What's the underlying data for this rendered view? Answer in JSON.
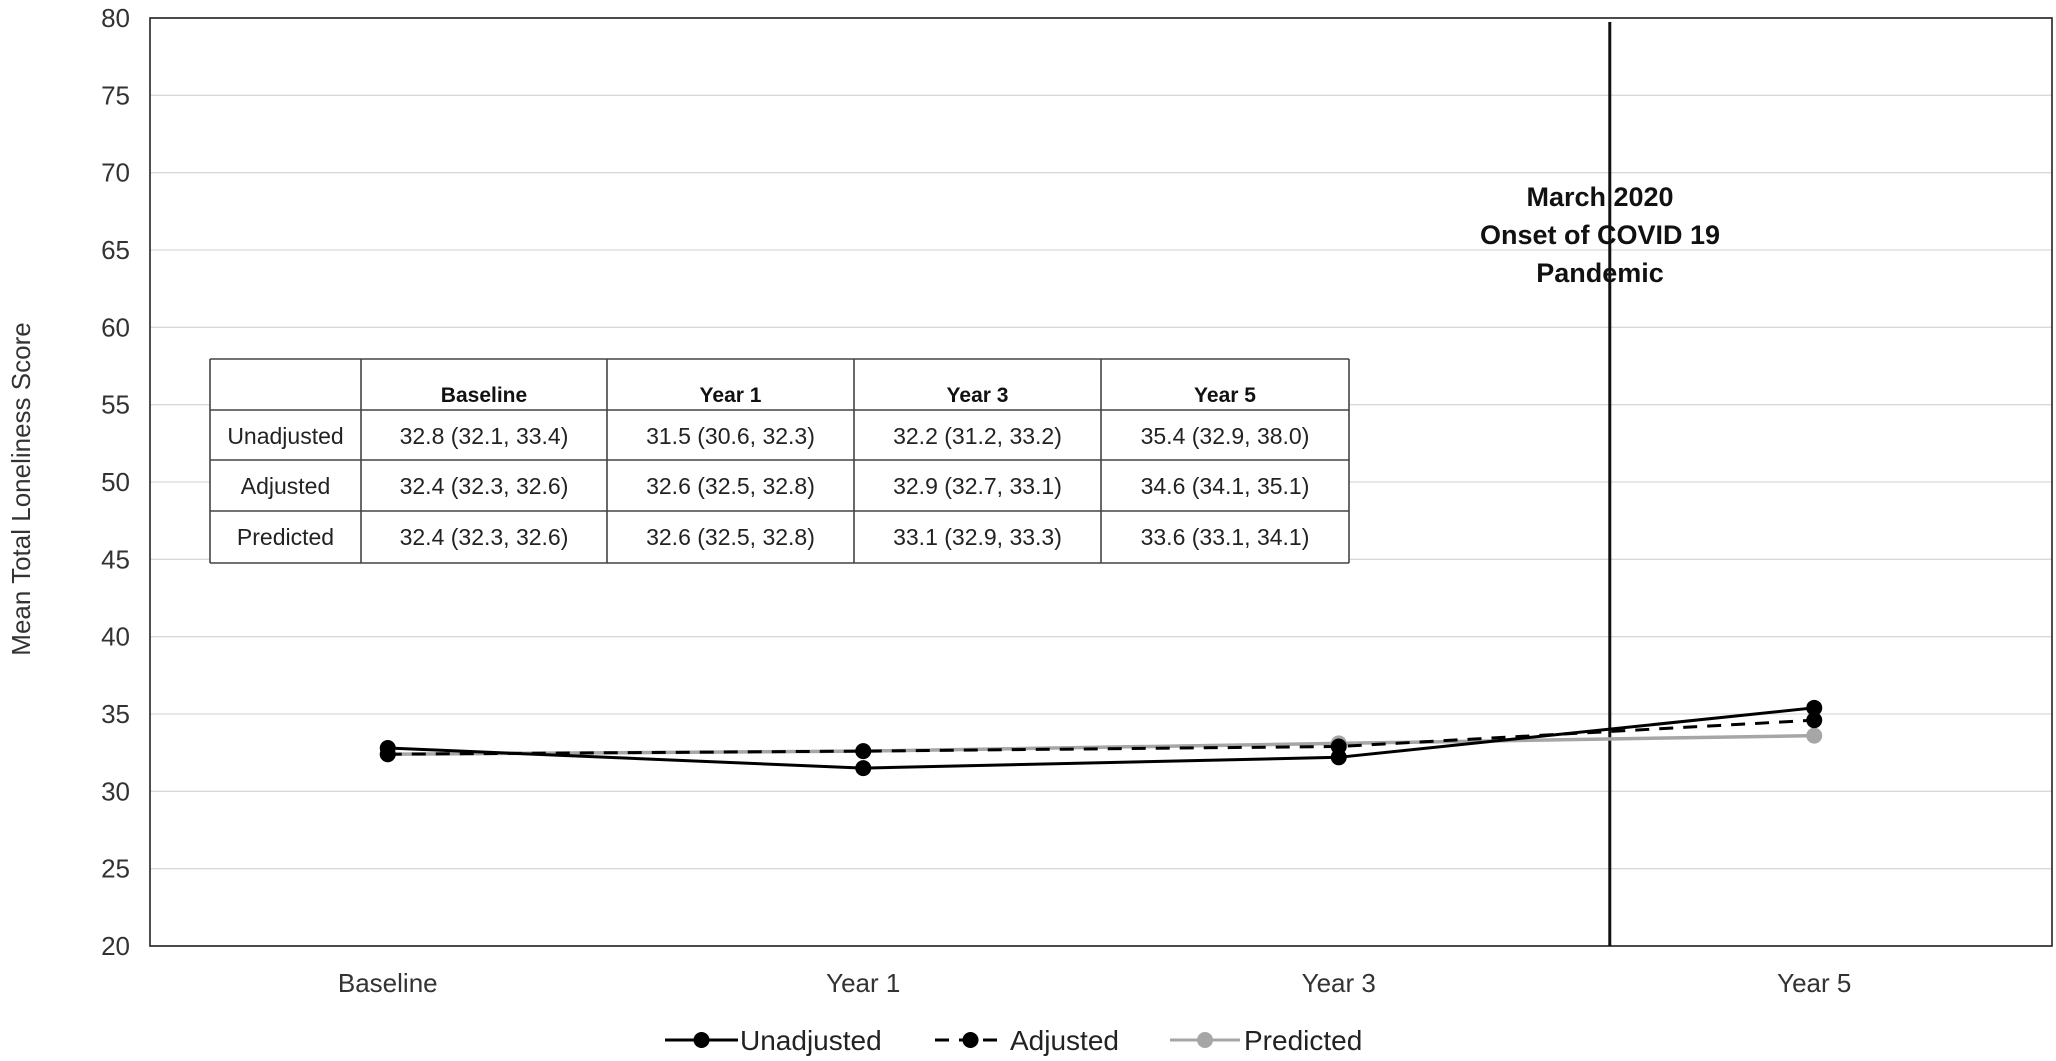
{
  "chart_data": {
    "type": "line",
    "title": "",
    "xlabel": "",
    "ylabel": "Mean Total Loneliness Score",
    "categories": [
      "Baseline",
      "Year 1",
      "Year 3",
      "Year 5"
    ],
    "ylim": [
      20,
      80
    ],
    "yticks": [
      20,
      25,
      30,
      35,
      40,
      45,
      50,
      55,
      60,
      65,
      70,
      75,
      80
    ],
    "grid": true,
    "legend_position": "bottom",
    "series": [
      {
        "name": "Unadjusted",
        "values": [
          32.8,
          31.5,
          32.2,
          35.4
        ],
        "color": "#000000",
        "dash": "solid"
      },
      {
        "name": "Adjusted",
        "values": [
          32.4,
          32.6,
          32.9,
          34.6
        ],
        "color": "#000000",
        "dash": "dashed"
      },
      {
        "name": "Predicted",
        "values": [
          32.4,
          32.6,
          33.1,
          33.6
        ],
        "color": "#a6a6a6",
        "dash": "solid"
      }
    ],
    "annotation": {
      "lines": [
        "March 2020",
        "Onset of COVID 19",
        "Pandemic"
      ],
      "x_between": [
        "Year 3",
        "Year 5"
      ]
    },
    "table": {
      "headers": [
        "",
        "Baseline",
        "Year 1",
        "Year 3",
        "Year 5"
      ],
      "rows": [
        [
          "Unadjusted",
          "32.8 (32.1, 33.4)",
          "31.5 (30.6, 32.3)",
          "32.2 (31.2, 33.2)",
          "35.4 (32.9, 38.0)"
        ],
        [
          "Adjusted",
          "32.4 (32.3, 32.6)",
          "32.6 (32.5, 32.8)",
          "32.9 (32.7, 33.1)",
          "34.6 (34.1, 35.1)"
        ],
        [
          "Predicted",
          "32.4 (32.3, 32.6)",
          "32.6 (32.5, 32.8)",
          "33.1 (32.9, 33.3)",
          "33.6 (33.1, 34.1)"
        ]
      ]
    }
  }
}
